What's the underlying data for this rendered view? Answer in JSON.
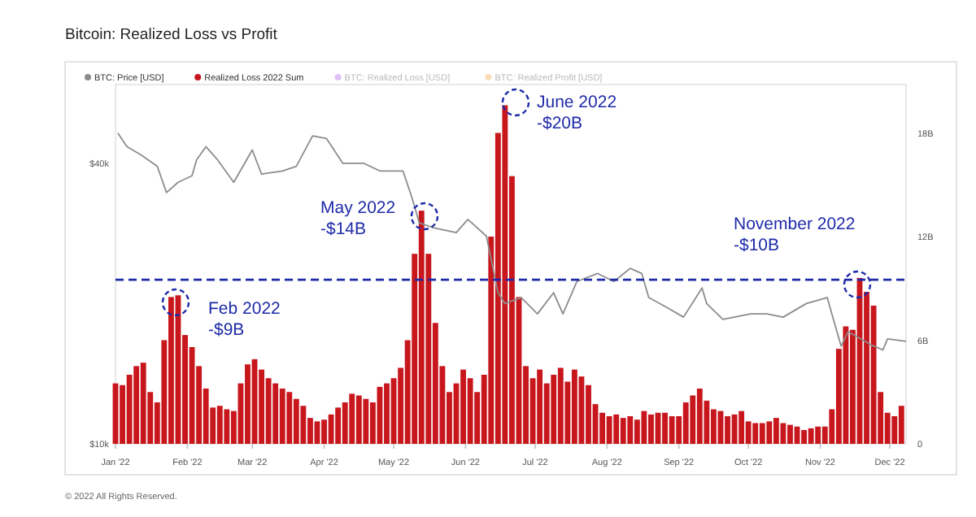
{
  "chart_data": {
    "type": "bar",
    "title": "Bitcoin: Realized Loss vs Profit",
    "legend": "top left",
    "log": "y",
    "line_style": "solid",
    "marker": "none",
    "xlim": [
      "2022-01-01",
      "2022-12-08"
    ],
    "xticks": [
      {
        "value": "2022-01-01",
        "label": "Jan '22"
      },
      {
        "value": "2022-02-01",
        "label": "Feb '22"
      },
      {
        "value": "2022-03-01",
        "label": "Mar '22"
      },
      {
        "value": "2022-04-01",
        "label": "Apr '22"
      },
      {
        "value": "2022-05-01",
        "label": "May '22"
      },
      {
        "value": "2022-06-01",
        "label": "Jun '22"
      },
      {
        "value": "2022-07-01",
        "label": "Jul '22"
      },
      {
        "value": "2022-08-01",
        "label": "Aug '22"
      },
      {
        "value": "2022-09-01",
        "label": "Sep '22"
      },
      {
        "value": "2022-10-01",
        "label": "Oct '22"
      },
      {
        "value": "2022-11-01",
        "label": "Nov '22"
      },
      {
        "value": "2022-12-01",
        "label": "Dec '22"
      }
    ],
    "ylim": [
      10000,
      59000
    ],
    "yticks": [
      {
        "value": 10000,
        "label": "$10k"
      },
      {
        "value": 40000,
        "label": "$40k"
      }
    ],
    "y2lim": [
      0,
      20.8
    ],
    "y2ticks": [
      0,
      {
        "value": 6,
        "label": "6B"
      },
      {
        "value": 12,
        "label": "12B"
      },
      {
        "value": 18,
        "label": "18B"
      }
    ],
    "series": [
      {
        "name": "BTC: Price [USD]",
        "type": "line",
        "axis": "y",
        "color": "#8c8c8c",
        "x": [
          "2022-01-02",
          "2022-01-06",
          "2022-01-12",
          "2022-01-19",
          "2022-01-23",
          "2022-01-28",
          "2022-02-03",
          "2022-02-05",
          "2022-02-09",
          "2022-02-14",
          "2022-02-21",
          "2022-03-01",
          "2022-03-05",
          "2022-03-14",
          "2022-03-20",
          "2022-03-27",
          "2022-04-02",
          "2022-04-09",
          "2022-04-18",
          "2022-04-25",
          "2022-05-05",
          "2022-05-09",
          "2022-05-12",
          "2022-05-18",
          "2022-05-28",
          "2022-06-02",
          "2022-06-10",
          "2022-06-15",
          "2022-06-18",
          "2022-06-25",
          "2022-07-02",
          "2022-07-09",
          "2022-07-13",
          "2022-07-19",
          "2022-07-28",
          "2022-08-04",
          "2022-08-11",
          "2022-08-16",
          "2022-08-19",
          "2022-08-27",
          "2022-09-03",
          "2022-09-11",
          "2022-09-13",
          "2022-09-20",
          "2022-10-02",
          "2022-10-09",
          "2022-10-16",
          "2022-10-26",
          "2022-11-04",
          "2022-11-06",
          "2022-11-10",
          "2022-11-13",
          "2022-11-23",
          "2022-11-28",
          "2022-11-30",
          "2022-12-08"
        ],
        "values": [
          46400,
          43400,
          41700,
          39400,
          34600,
          36400,
          37600,
          40700,
          43400,
          40700,
          36400,
          42700,
          37900,
          38500,
          39400,
          45800,
          45200,
          40000,
          40000,
          38500,
          38500,
          33600,
          29800,
          29100,
          28400,
          30300,
          27900,
          21100,
          20000,
          20600,
          19000,
          21100,
          19000,
          22300,
          23200,
          22300,
          23800,
          23200,
          20600,
          19600,
          18700,
          21600,
          20000,
          18500,
          19000,
          19000,
          18700,
          20000,
          20600,
          19000,
          16200,
          17400,
          16300,
          15900,
          16800,
          16600
        ]
      },
      {
        "name": "Realized Loss 2022 Sum",
        "axis": "y2",
        "color": "#c8161d",
        "x": [
          "2022-01-01",
          "2022-01-04",
          "2022-01-07",
          "2022-01-10",
          "2022-01-13",
          "2022-01-16",
          "2022-01-19",
          "2022-01-22",
          "2022-01-25",
          "2022-01-28",
          "2022-01-31",
          "2022-02-03",
          "2022-02-06",
          "2022-02-09",
          "2022-02-12",
          "2022-02-15",
          "2022-02-18",
          "2022-02-21",
          "2022-02-24",
          "2022-02-27",
          "2022-03-02",
          "2022-03-05",
          "2022-03-08",
          "2022-03-11",
          "2022-03-14",
          "2022-03-17",
          "2022-03-20",
          "2022-03-23",
          "2022-03-26",
          "2022-03-29",
          "2022-04-01",
          "2022-04-04",
          "2022-04-07",
          "2022-04-10",
          "2022-04-13",
          "2022-04-16",
          "2022-04-19",
          "2022-04-22",
          "2022-04-25",
          "2022-04-28",
          "2022-05-01",
          "2022-05-04",
          "2022-05-07",
          "2022-05-10",
          "2022-05-13",
          "2022-05-16",
          "2022-05-19",
          "2022-05-22",
          "2022-05-25",
          "2022-05-28",
          "2022-05-31",
          "2022-06-03",
          "2022-06-06",
          "2022-06-09",
          "2022-06-12",
          "2022-06-15",
          "2022-06-18",
          "2022-06-21",
          "2022-06-24",
          "2022-06-27",
          "2022-06-30",
          "2022-07-03",
          "2022-07-06",
          "2022-07-09",
          "2022-07-12",
          "2022-07-15",
          "2022-07-18",
          "2022-07-21",
          "2022-07-24",
          "2022-07-27",
          "2022-07-30",
          "2022-08-02",
          "2022-08-05",
          "2022-08-08",
          "2022-08-11",
          "2022-08-14",
          "2022-08-17",
          "2022-08-20",
          "2022-08-23",
          "2022-08-26",
          "2022-08-29",
          "2022-09-01",
          "2022-09-04",
          "2022-09-07",
          "2022-09-10",
          "2022-09-13",
          "2022-09-16",
          "2022-09-19",
          "2022-09-22",
          "2022-09-25",
          "2022-09-28",
          "2022-10-01",
          "2022-10-04",
          "2022-10-07",
          "2022-10-10",
          "2022-10-13",
          "2022-10-16",
          "2022-10-19",
          "2022-10-22",
          "2022-10-25",
          "2022-10-28",
          "2022-10-31",
          "2022-11-03",
          "2022-11-06",
          "2022-11-09",
          "2022-11-12",
          "2022-11-15",
          "2022-11-18",
          "2022-11-21",
          "2022-11-24",
          "2022-11-27",
          "2022-11-30",
          "2022-12-03",
          "2022-12-06"
        ],
        "values": [
          3.5,
          3.4,
          4.0,
          4.5,
          4.7,
          3.0,
          2.4,
          6.0,
          8.5,
          8.6,
          6.3,
          5.6,
          4.5,
          3.2,
          2.1,
          2.2,
          2.0,
          1.9,
          3.5,
          4.6,
          4.9,
          4.3,
          3.8,
          3.5,
          3.2,
          3.0,
          2.6,
          2.2,
          1.5,
          1.3,
          1.4,
          1.7,
          2.1,
          2.4,
          2.9,
          2.8,
          2.6,
          2.4,
          3.3,
          3.5,
          3.8,
          4.4,
          6.0,
          11.0,
          13.5,
          11.0,
          7.0,
          4.5,
          3.0,
          3.5,
          4.3,
          3.8,
          3.0,
          4.0,
          12.0,
          18.0,
          19.6,
          15.5,
          8.5,
          4.5,
          3.8,
          4.3,
          3.5,
          4.0,
          4.4,
          3.6,
          4.3,
          3.9,
          3.4,
          2.3,
          1.8,
          1.6,
          1.7,
          1.5,
          1.6,
          1.4,
          1.9,
          1.7,
          1.8,
          1.8,
          1.6,
          1.6,
          2.4,
          2.8,
          3.2,
          2.5,
          2.0,
          1.9,
          1.6,
          1.7,
          1.9,
          1.3,
          1.2,
          1.2,
          1.3,
          1.5,
          1.2,
          1.1,
          1.0,
          0.8,
          0.9,
          1.0,
          1.0,
          2.0,
          5.5,
          6.8,
          6.6,
          9.6,
          8.8,
          8.0,
          3.0,
          1.8,
          1.6,
          2.2
        ]
      },
      {
        "name": "BTC: Realized Loss [USD]",
        "type": "line",
        "color": "#a64ce0"
      },
      {
        "name": "BTC: Realized Profit [USD]",
        "type": "line",
        "color": "#f0a030"
      }
    ],
    "ref_lines": [
      {
        "axis": "y2",
        "value": 9.5,
        "color": "#1e2aa8",
        "line_style": "dashed"
      }
    ],
    "annotations": [
      "Feb 2022\n-$9B",
      "May 2022\n-$14B",
      "June 2022\n-$20B",
      "November 2022\n-$10B",
      "© 2022 All Rights Reserved."
    ]
  }
}
